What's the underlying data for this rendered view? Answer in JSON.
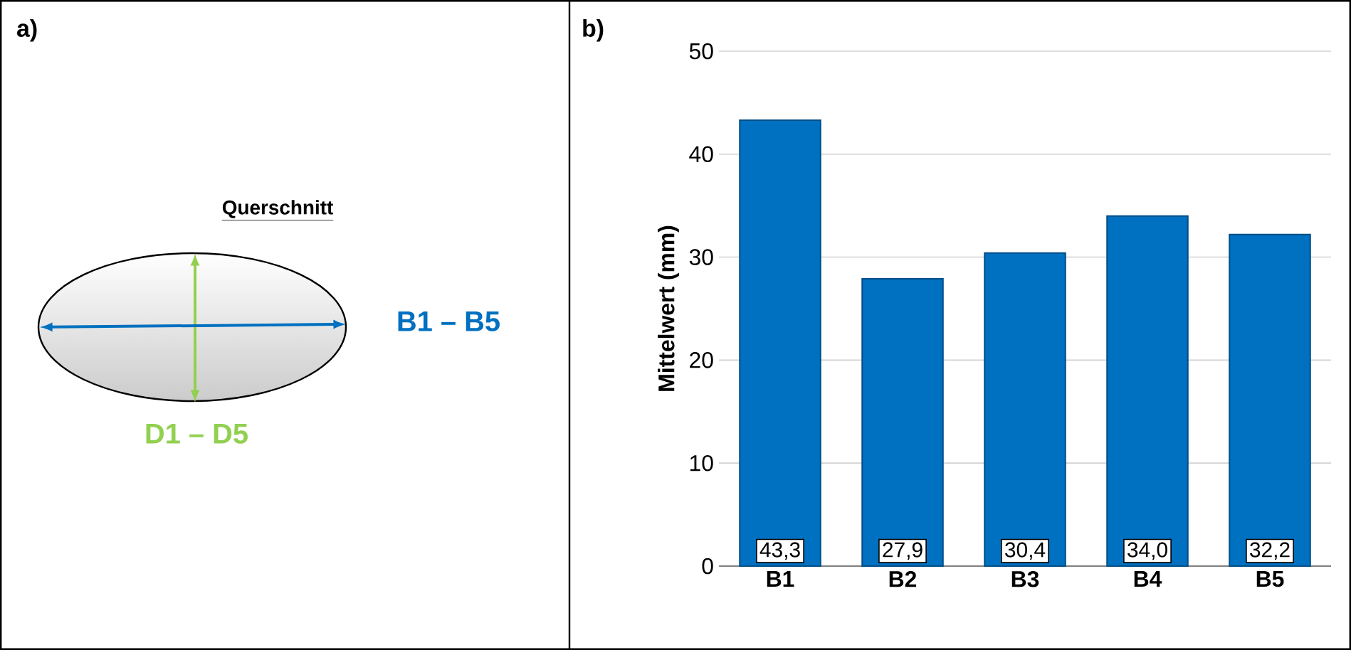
{
  "chart_data": [
    {
      "type": "other",
      "title": "a)",
      "annotations": [
        "Querschnitt",
        "B1 – B5",
        "D1 – D5"
      ]
    },
    {
      "type": "bar",
      "title": "b)",
      "ylabel": "Mittelwert (mm)",
      "categories": [
        "B1",
        "B2",
        "B3",
        "B4",
        "B5"
      ],
      "values": [
        43.3,
        27.9,
        30.4,
        34.0,
        32.2
      ],
      "color": "#0070c0",
      "value_labels": [
        "43,3",
        "27,9",
        "30,4",
        "34,0",
        "32,2"
      ],
      "ylim": [
        0,
        50
      ],
      "yticks": [
        0,
        10,
        20,
        30,
        40,
        50
      ],
      "grid": "y"
    }
  ]
}
